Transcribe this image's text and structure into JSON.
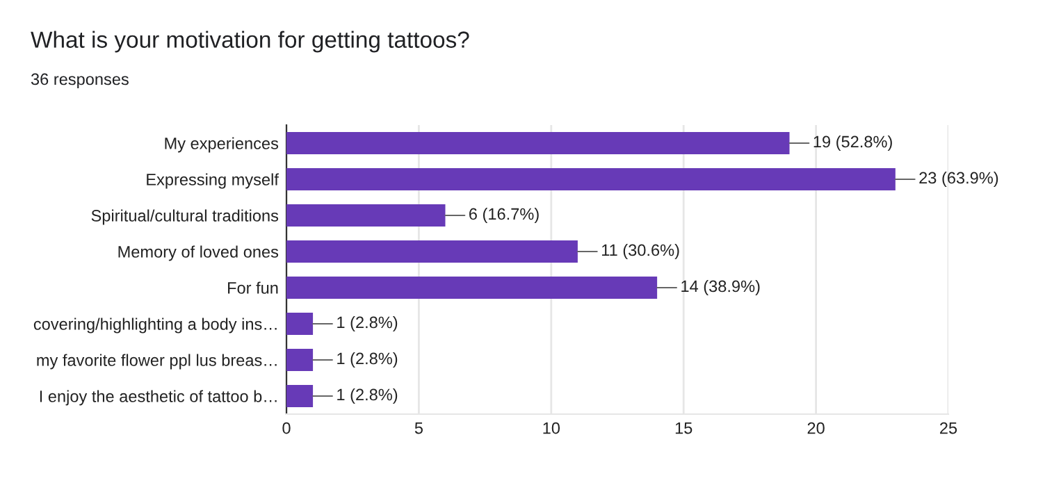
{
  "chart_data": {
    "type": "bar",
    "orientation": "horizontal",
    "title": "What is your motivation for getting tattoos?",
    "subtitle": "36 responses",
    "categories": [
      "My experiences",
      "Expressing myself",
      "Spiritual/cultural traditions",
      "Memory of loved ones",
      "For fun",
      "covering/highlighting a body ins…",
      "my favorite flower ppl lus breas…",
      "I enjoy the aesthetic of tattoo b…"
    ],
    "values": [
      19,
      23,
      6,
      11,
      14,
      1,
      1,
      1
    ],
    "value_labels": [
      "19 (52.8%)",
      "23 (63.9%)",
      "6 (16.7%)",
      "11 (30.6%)",
      "14 (38.9%)",
      "1 (2.8%)",
      "1 (2.8%)",
      "1 (2.8%)"
    ],
    "color": "#673ab7",
    "xlim": [
      0,
      25
    ],
    "xticks": [
      0,
      5,
      10,
      15,
      20,
      25
    ],
    "grid": "x",
    "legend": false
  }
}
